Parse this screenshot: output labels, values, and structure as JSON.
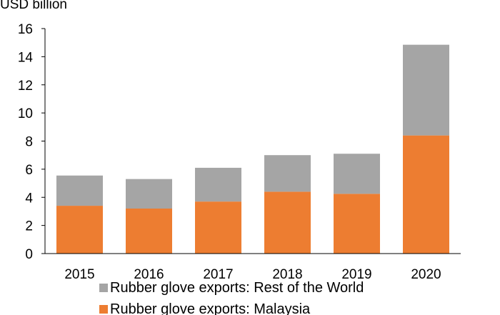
{
  "chart_data": {
    "type": "bar",
    "stacked": true,
    "y_unit_label": "USD billion",
    "categories": [
      "2015",
      "2016",
      "2017",
      "2018",
      "2019",
      "2020"
    ],
    "series": [
      {
        "name": "Rubber glove exports: Malaysia",
        "color": "#ED7D31",
        "values": [
          3.4,
          3.2,
          3.7,
          4.4,
          4.25,
          8.4
        ]
      },
      {
        "name": "Rubber glove exports: Rest of the World",
        "color": "#A5A5A5",
        "values": [
          2.15,
          2.1,
          2.4,
          2.6,
          2.85,
          6.45
        ]
      }
    ],
    "ylim": [
      0,
      16
    ],
    "yticks": [
      0,
      2,
      4,
      6,
      8,
      10,
      12,
      14,
      16
    ],
    "grid": false,
    "legend_position": "bottom"
  }
}
